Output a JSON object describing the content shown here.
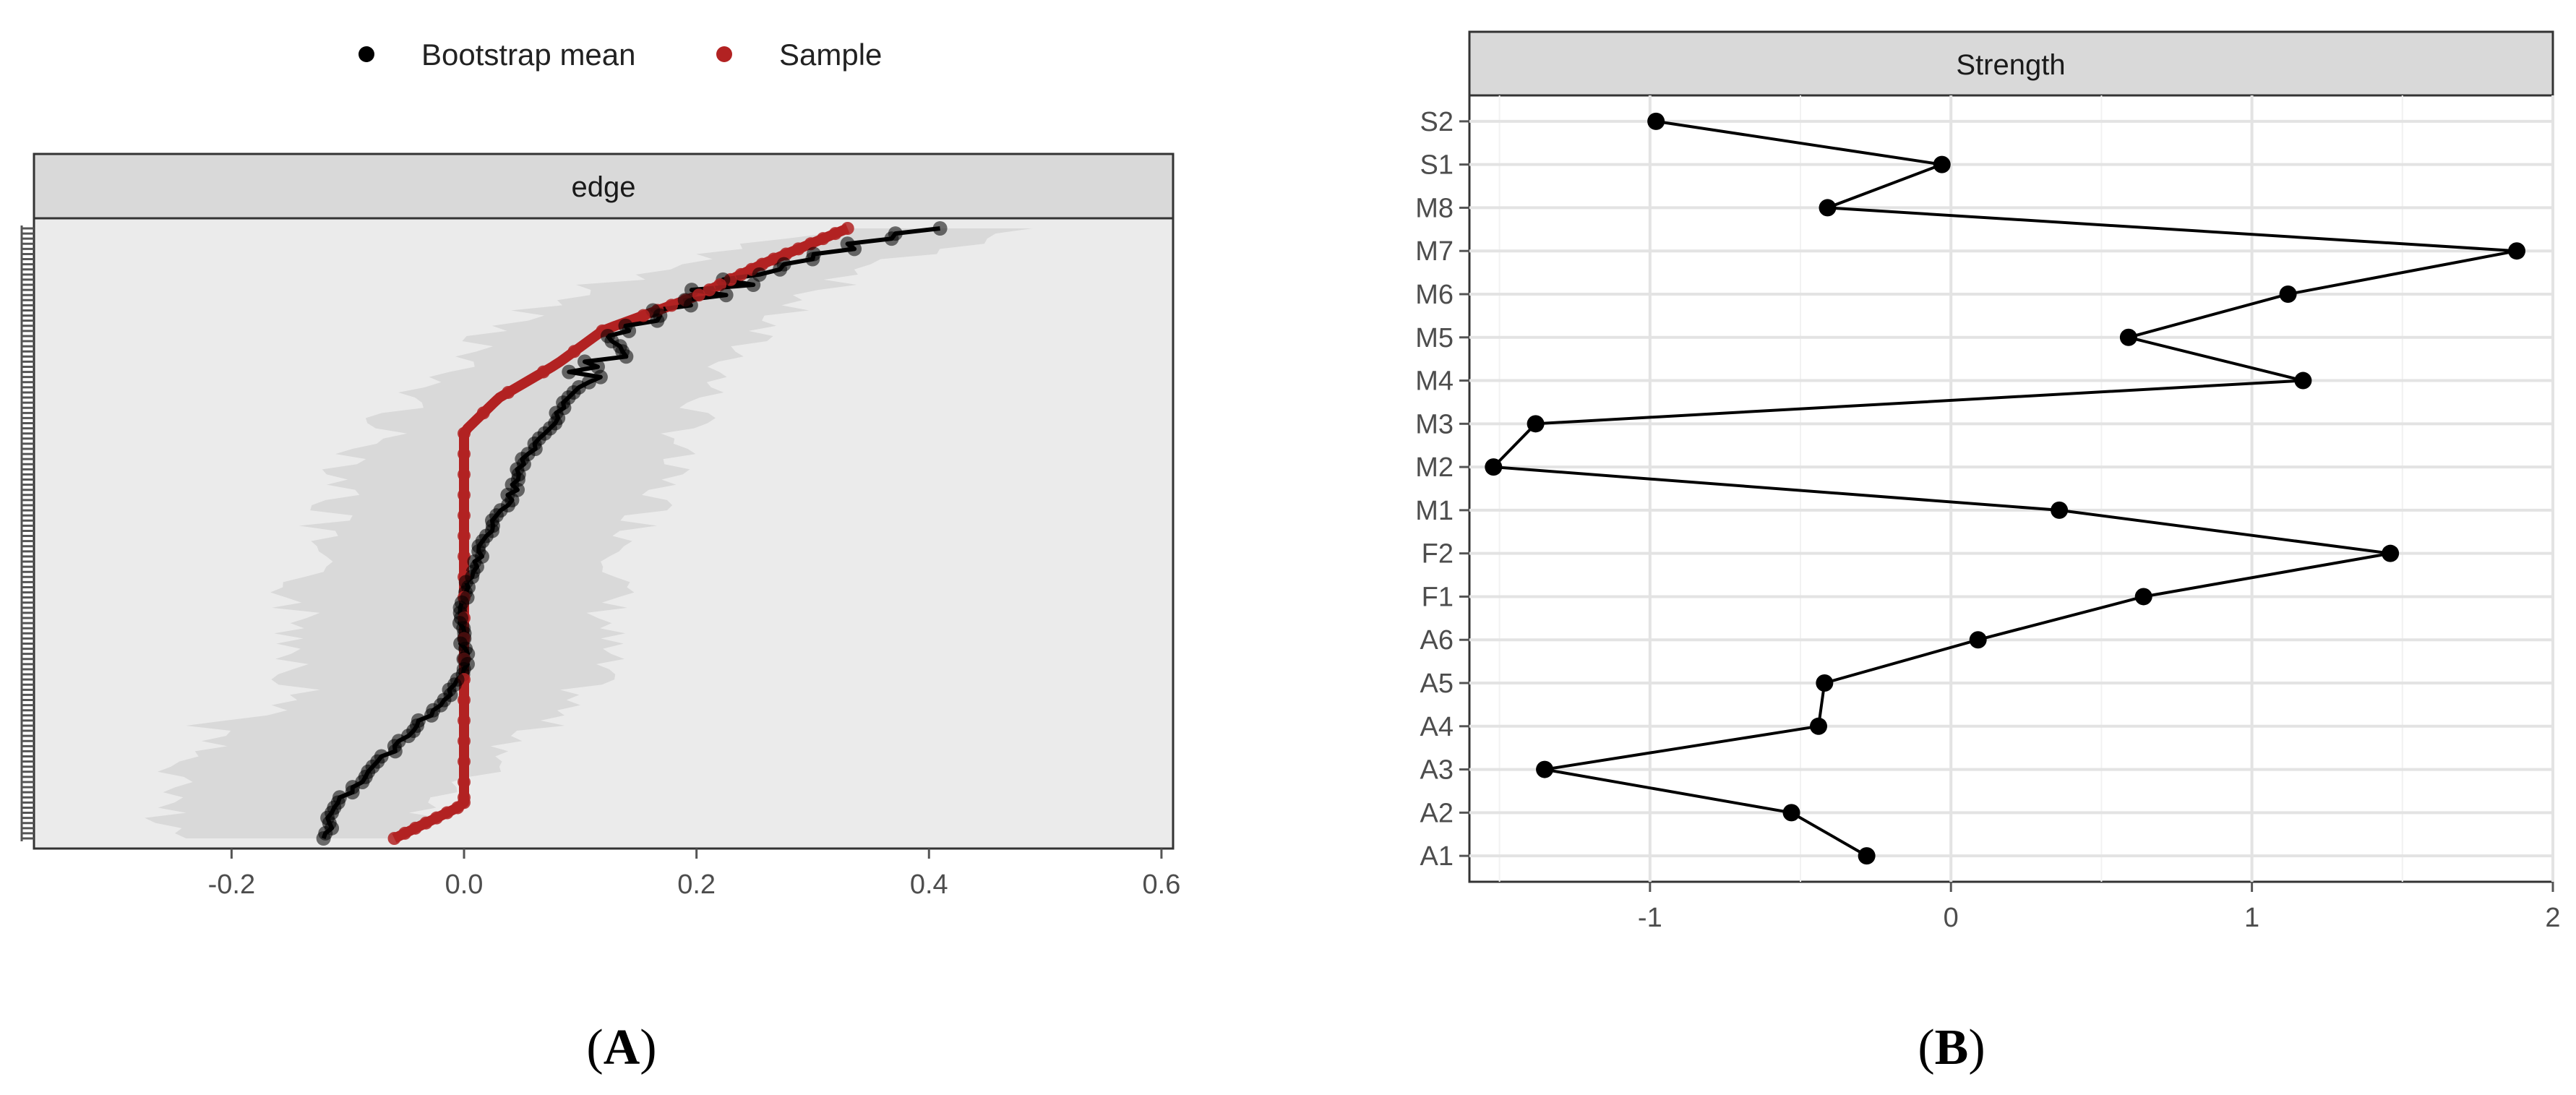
{
  "panel_labels": {
    "a": "A",
    "b": "B"
  },
  "colors": {
    "bootstrap": "#000000",
    "sample": "#b22222",
    "ci_band": "#d9d9d9",
    "panel_bg_a": "#ebebeb",
    "strip_bg": "#d9d9d9"
  },
  "chart_data": [
    {
      "type": "line",
      "panel": "A",
      "strip_title": "edge",
      "legend": {
        "placement": "top",
        "entries": [
          "Bootstrap mean",
          "Sample"
        ]
      },
      "xlabel": "",
      "ylabel": "",
      "xlim": [
        -0.37,
        0.61
      ],
      "xticks": [
        -0.2,
        0.0,
        0.2,
        0.4,
        0.6
      ],
      "xtick_labels": [
        "-0.2",
        "0.0",
        "0.2",
        "0.4",
        "0.6"
      ],
      "y_tick_labels_visible": false,
      "num_edges": 120,
      "series": [
        {
          "name": "Bootstrap mean",
          "description_points_x": [
            -0.12,
            -0.11,
            -0.08,
            -0.05,
            -0.02,
            0.0,
            0.0,
            0.0,
            0.01,
            0.02,
            0.04,
            0.05,
            0.07,
            0.09,
            0.12,
            0.15,
            0.2,
            0.28,
            0.41
          ]
        },
        {
          "name": "Sample",
          "description_points_x": [
            -0.06,
            0.0,
            0.0,
            0.0,
            0.0,
            0.0,
            0.0,
            0.0,
            0.0,
            0.0,
            0.0,
            0.0,
            0.0,
            0.03,
            0.08,
            0.12,
            0.2,
            0.26,
            0.33
          ]
        }
      ],
      "grid": false
    },
    {
      "type": "line",
      "panel": "B",
      "strip_title": "Strength",
      "xlabel": "",
      "ylabel": "",
      "xlim": [
        -1.6,
        2.0
      ],
      "xticks": [
        -1,
        0,
        1,
        2
      ],
      "xtick_labels": [
        "-1",
        "0",
        "1",
        "2"
      ],
      "categories": [
        "A1",
        "A2",
        "A3",
        "A4",
        "A5",
        "A6",
        "F1",
        "F2",
        "M1",
        "M2",
        "M3",
        "M4",
        "M5",
        "M6",
        "M7",
        "M8",
        "S1",
        "S2"
      ],
      "series": [
        {
          "name": "",
          "values": [
            -0.28,
            -0.53,
            -1.35,
            -0.44,
            -0.42,
            0.09,
            0.64,
            1.46,
            0.36,
            -1.52,
            -1.38,
            1.17,
            0.59,
            1.12,
            1.88,
            -0.41,
            -0.03,
            -0.98
          ]
        }
      ],
      "grid": true
    }
  ]
}
